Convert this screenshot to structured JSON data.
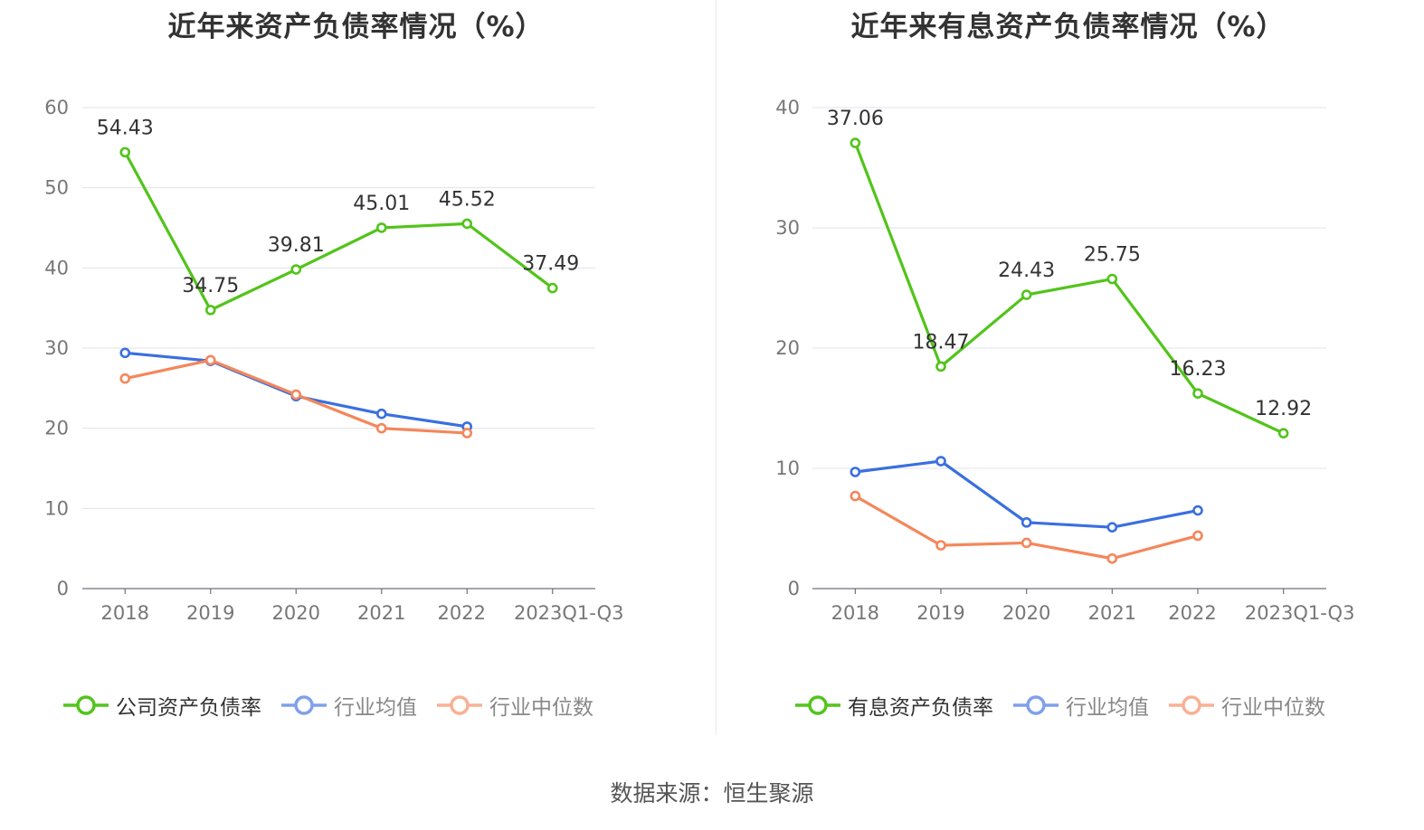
{
  "source": "数据来源：恒生聚源",
  "chart_data": [
    {
      "type": "line",
      "title": "近年来资产负债率情况（%）",
      "categories": [
        "2018",
        "2019",
        "2020",
        "2021",
        "2022",
        "2023Q1-Q3"
      ],
      "ylim": [
        0,
        60
      ],
      "yticks": [
        0,
        10,
        20,
        30,
        40,
        50,
        60
      ],
      "grid": true,
      "legend_position": "bottom",
      "series": [
        {
          "name": "公司资产负债率",
          "color": "#52c41a",
          "values": [
            54.43,
            34.75,
            39.81,
            45.01,
            45.52,
            37.49
          ],
          "labels": [
            "54.43",
            "34.75",
            "39.81",
            "45.01",
            "45.52",
            "37.49"
          ]
        },
        {
          "name": "行业均值",
          "color": "#3a6fe0",
          "values": [
            29.4,
            28.4,
            24.0,
            21.8,
            20.2,
            null
          ]
        },
        {
          "name": "行业中位数",
          "color": "#f5865a",
          "values": [
            26.2,
            28.5,
            24.2,
            20.0,
            19.4,
            null
          ]
        }
      ]
    },
    {
      "type": "line",
      "title": "近年来有息资产负债率情况（%）",
      "categories": [
        "2018",
        "2019",
        "2020",
        "2021",
        "2022",
        "2023Q1-Q3"
      ],
      "ylim": [
        0,
        40
      ],
      "yticks": [
        0,
        10,
        20,
        30,
        40
      ],
      "grid": true,
      "legend_position": "bottom",
      "series": [
        {
          "name": "有息资产负债率",
          "color": "#52c41a",
          "values": [
            37.06,
            18.47,
            24.43,
            25.75,
            16.23,
            12.92
          ],
          "labels": [
            "37.06",
            "18.47",
            "24.43",
            "25.75",
            "16.23",
            "12.92"
          ]
        },
        {
          "name": "行业均值",
          "color": "#3a6fe0",
          "values": [
            9.7,
            10.6,
            5.5,
            5.1,
            6.5,
            null
          ]
        },
        {
          "name": "行业中位数",
          "color": "#f5865a",
          "values": [
            7.7,
            3.6,
            3.8,
            2.5,
            4.4,
            null
          ]
        }
      ]
    }
  ]
}
